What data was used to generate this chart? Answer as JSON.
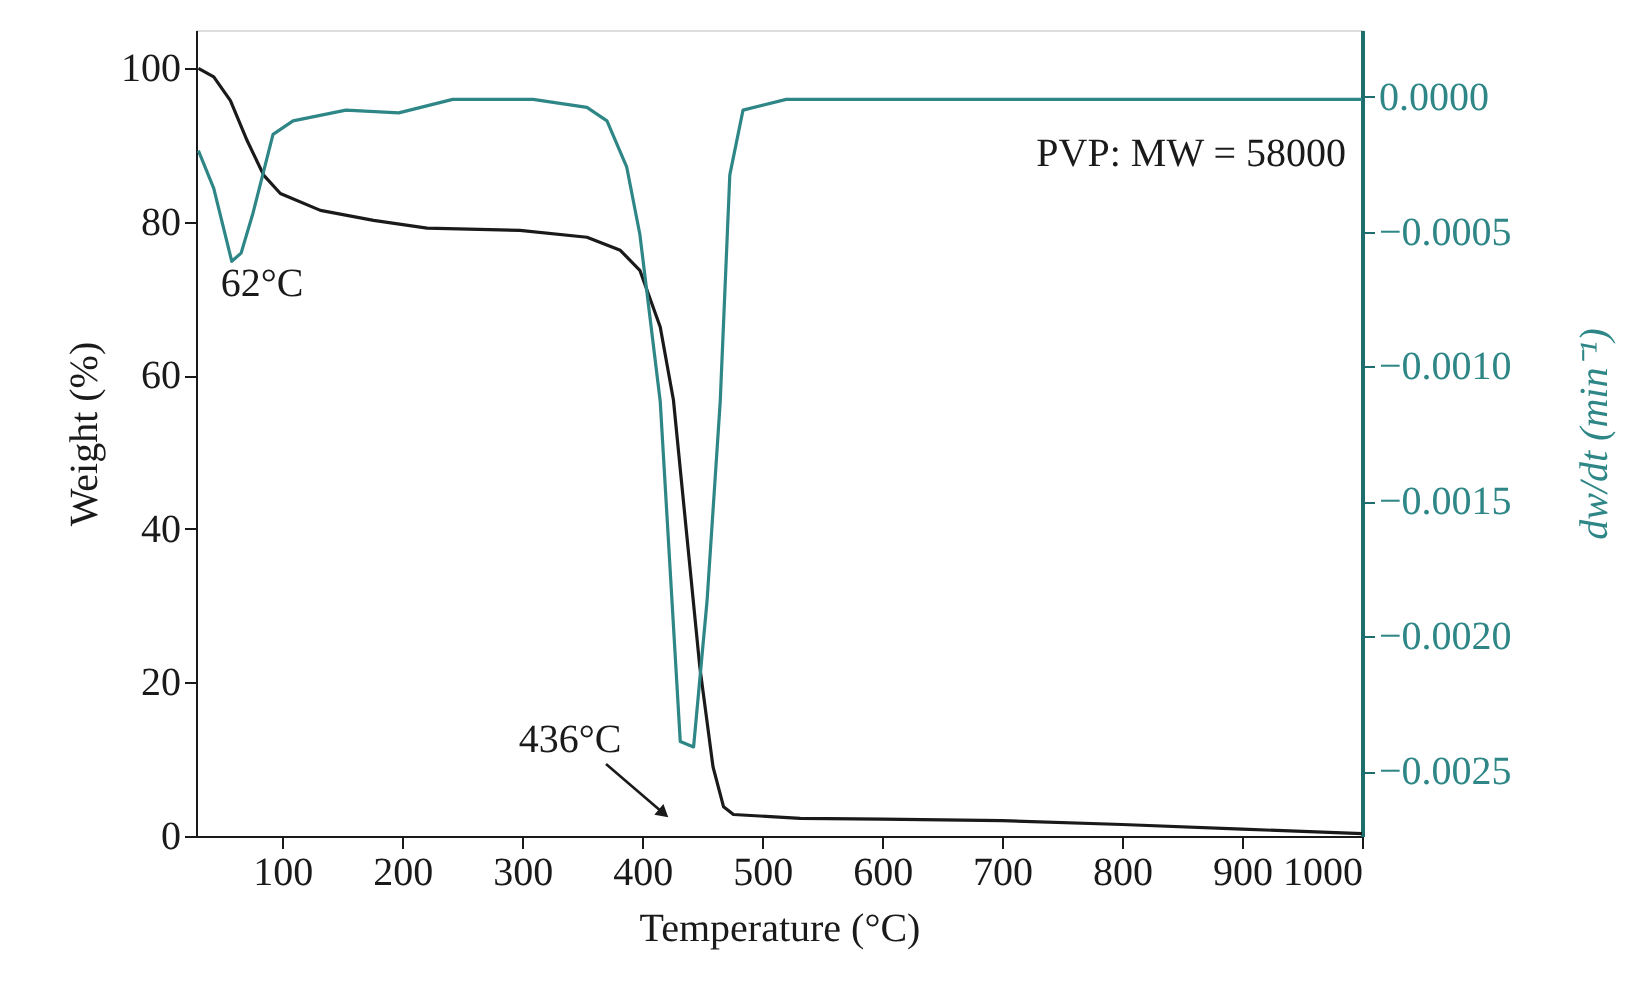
{
  "chart_data": {
    "type": "line",
    "xlabel": "Temperature (°C)",
    "ylabel": "Weight (%)",
    "y2label": "dw/dt (min⁻¹)",
    "xlim": [
      28,
      1000
    ],
    "xticks": [
      100,
      200,
      300,
      400,
      500,
      600,
      700,
      800,
      900,
      1000
    ],
    "ylim": [
      0,
      105
    ],
    "yticks": [
      0,
      20,
      40,
      60,
      80,
      100
    ],
    "y2lim": [
      -0.00274,
      0.000247
    ],
    "y2ticks": [
      {
        "value": 0,
        "label": "0.0000"
      },
      {
        "value": -0.0005,
        "label": "−0.0005"
      },
      {
        "value": -0.001,
        "label": "−0.0010"
      },
      {
        "value": -0.0015,
        "label": "−0.0015"
      },
      {
        "value": -0.002,
        "label": "−0.0020"
      },
      {
        "value": -0.0025,
        "label": "−0.0025"
      }
    ],
    "grid": false,
    "line_style": "solid",
    "marker": "none",
    "series": [
      {
        "color": "#1a1a1a",
        "x": [
          30,
          42.8,
          56.7,
          70.6,
          84.4,
          98.3,
          131.7,
          176,
          220.6,
          298,
          353.9,
          381.7,
          398,
          415,
          426,
          437,
          448,
          459,
          467.8,
          476,
          531.7,
          600,
          700,
          800,
          900,
          1000
        ],
        "values": [
          100,
          98.9,
          95.8,
          90.6,
          86.1,
          83.7,
          81.5,
          80.2,
          79.2,
          78.9,
          78.0,
          76.3,
          73.7,
          66.3,
          56.8,
          39.4,
          22.0,
          9.0,
          3.8,
          2.8,
          2.3,
          2.2,
          2.0,
          1.5,
          0.9,
          0.3
        ]
      },
      {
        "color": "#2e8686",
        "axis": "y2",
        "x": [
          30,
          42.8,
          57.8,
          65.6,
          75.6,
          92.2,
          108.9,
          153,
          197,
          242,
          309,
          353.9,
          370.6,
          387,
          398,
          415,
          431.7,
          442.8,
          454,
          465,
          473,
          484,
          520,
          600,
          800,
          1000
        ],
        "values": [
          -0.0002,
          -0.00034,
          -0.00061,
          -0.00058,
          -0.00043,
          -0.00014,
          -9e-05,
          -5e-05,
          -6e-05,
          -1e-05,
          -1e-05,
          -4e-05,
          -9e-05,
          -0.00026,
          -0.00051,
          -0.00113,
          -0.00239,
          -0.00241,
          -0.00187,
          -0.00113,
          -0.00029,
          -5e-05,
          -1e-05,
          -1e-05,
          -1e-05,
          -1e-05
        ]
      }
    ],
    "annotations": [
      {
        "text": "62°C",
        "x": 62,
        "y": 75.5
      },
      "PVP: MW = 58000",
      "436°C"
    ]
  }
}
